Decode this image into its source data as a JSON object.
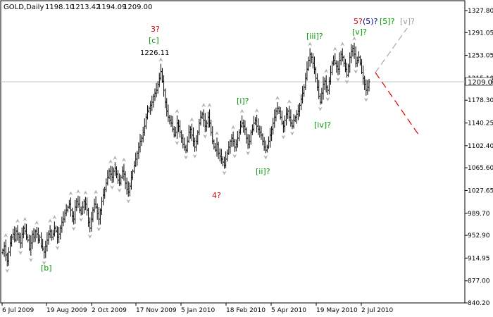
{
  "header": {
    "symbol": "GOLD,Daily",
    "open": "1198.10",
    "high": "1213.42",
    "low": "1194.09",
    "close": "1209.00"
  },
  "colors": {
    "bar": "#000000",
    "fractal": "#b0b0b0",
    "wave_green": "#009900",
    "wave_red": "#cc0000",
    "wave_navy": "#000080",
    "wave_gray": "#999999",
    "forecast_up": "#aaaaaa",
    "forecast_down": "#dd0000",
    "price_line": "#c0c0c0"
  },
  "chart_data": {
    "type": "ohlc",
    "title": "GOLD,Daily",
    "xlabel": "",
    "ylabel": "",
    "x_ticks": [
      "6 Jul 2009",
      "19 Aug 2009",
      "2 Oct 2009",
      "17 Nov 2009",
      "5 Jan 2010",
      "18 Feb 2010",
      "5 Apr 2010",
      "19 May 2010",
      "2 Jul 2010"
    ],
    "y_ticks": [
      "1327.80",
      "1291.05",
      "1253.05",
      "1215.10",
      "1178.30",
      "1140.25",
      "1102.40",
      "1065.60",
      "1027.65",
      "989.70",
      "952.90",
      "914.95",
      "877.00",
      "840.20"
    ],
    "ylim": [
      840.2,
      1327.8
    ],
    "current_price": "1209.00",
    "closes": [
      928,
      935,
      920,
      910,
      925,
      940,
      950,
      955,
      945,
      960,
      955,
      950,
      940,
      955,
      965,
      960,
      950,
      945,
      930,
      940,
      955,
      950,
      960,
      955,
      945,
      950,
      935,
      930,
      925,
      935,
      945,
      955,
      960,
      950,
      955,
      965,
      960,
      950,
      955,
      965,
      975,
      980,
      990,
      995,
      1000,
      1005,
      995,
      985,
      980,
      1000,
      1010,
      1005,
      995,
      990,
      1000,
      1010,
      1005,
      995,
      975,
      965,
      980,
      995,
      1005,
      1000,
      990,
      980,
      995,
      1010,
      1020,
      1030,
      1040,
      1050,
      1060,
      1055,
      1050,
      1060,
      1065,
      1055,
      1045,
      1040,
      1050,
      1060,
      1055,
      1040,
      1030,
      1025,
      1035,
      1050,
      1060,
      1070,
      1080,
      1090,
      1100,
      1110,
      1115,
      1125,
      1135,
      1150,
      1160,
      1165,
      1170,
      1175,
      1185,
      1190,
      1195,
      1205,
      1215,
      1226,
      1210,
      1195,
      1175,
      1160,
      1150,
      1145,
      1140,
      1130,
      1120,
      1125,
      1140,
      1135,
      1125,
      1115,
      1105,
      1100,
      1095,
      1110,
      1125,
      1130,
      1120,
      1110,
      1100,
      1110,
      1125,
      1140,
      1150,
      1155,
      1145,
      1135,
      1140,
      1150,
      1140,
      1125,
      1110,
      1100,
      1095,
      1105,
      1090,
      1085,
      1080,
      1075,
      1070,
      1080,
      1090,
      1100,
      1110,
      1115,
      1110,
      1100,
      1105,
      1115,
      1125,
      1135,
      1140,
      1135,
      1130,
      1115,
      1105,
      1110,
      1125,
      1130,
      1140,
      1145,
      1135,
      1130,
      1125,
      1120,
      1110,
      1100,
      1095,
      1100,
      1110,
      1120,
      1130,
      1140,
      1150,
      1160,
      1165,
      1160,
      1150,
      1140,
      1135,
      1145,
      1155,
      1160,
      1150,
      1140,
      1135,
      1145,
      1150,
      1155,
      1160,
      1170,
      1180,
      1190,
      1200,
      1215,
      1230,
      1245,
      1255,
      1250,
      1240,
      1230,
      1215,
      1200,
      1185,
      1175,
      1190,
      1205,
      1210,
      1200,
      1195,
      1210,
      1225,
      1240,
      1245,
      1240,
      1235,
      1230,
      1245,
      1255,
      1250,
      1240,
      1230,
      1220,
      1235,
      1250,
      1260,
      1265,
      1255,
      1240,
      1245,
      1250,
      1240,
      1225,
      1215,
      1205,
      1195,
      1200,
      1209
    ],
    "high_annotation": "1226.11"
  },
  "wave_labels": [
    {
      "text": "[b]",
      "color": "green"
    },
    {
      "text": "3?",
      "color": "red"
    },
    {
      "text": "[c]",
      "color": "green"
    },
    {
      "text": "4?",
      "color": "red"
    },
    {
      "text": "[i]?",
      "color": "green"
    },
    {
      "text": "[ii]?",
      "color": "green"
    },
    {
      "text": "[iii]?",
      "color": "green"
    },
    {
      "text": "[iv]?",
      "color": "green"
    },
    {
      "text": "[v]?",
      "color": "green"
    },
    {
      "text": "5?",
      "color": "red"
    },
    {
      "text": "(5)?",
      "color": "navy"
    },
    {
      "text": "[5]?",
      "color": "green"
    },
    {
      "text": "[v]?",
      "color": "gray"
    }
  ]
}
